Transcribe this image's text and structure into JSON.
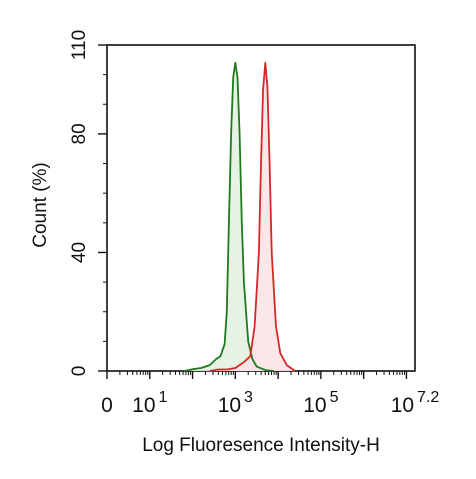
{
  "chart_data": {
    "type": "area",
    "xlabel": "Log Fluoresence Intensity-H",
    "ylabel": "Count  (%)",
    "xscale": "log",
    "xlim": [
      0,
      7.2
    ],
    "ylim": [
      0,
      110
    ],
    "grid": false,
    "legend": "none",
    "y_ticks": [
      {
        "value": 0,
        "label": "0"
      },
      {
        "value": 40,
        "label": "40"
      },
      {
        "value": 80,
        "label": "80"
      },
      {
        "value": 110,
        "label": "110"
      }
    ],
    "x_ticks": [
      {
        "value": 0,
        "base": "0",
        "exp": ""
      },
      {
        "value": 1,
        "base": "10",
        "exp": "1"
      },
      {
        "value": 3,
        "base": "10",
        "exp": "3"
      },
      {
        "value": 5,
        "base": "10",
        "exp": "5"
      },
      {
        "value": 7.2,
        "base": "10",
        "exp": "7.2"
      }
    ],
    "series": [
      {
        "line_color": "#1f7a1f",
        "fill_color": "#e3f1e0",
        "points": [
          [
            1.8,
            0
          ],
          [
            2.0,
            0.6
          ],
          [
            2.2,
            1.0
          ],
          [
            2.4,
            2.0
          ],
          [
            2.55,
            4.0
          ],
          [
            2.65,
            5.0
          ],
          [
            2.75,
            9.0
          ],
          [
            2.8,
            20.0
          ],
          [
            2.85,
            50.0
          ],
          [
            2.9,
            80.0
          ],
          [
            2.95,
            99.0
          ],
          [
            3.0,
            104.0
          ],
          [
            3.05,
            99.0
          ],
          [
            3.1,
            80.0
          ],
          [
            3.15,
            50.0
          ],
          [
            3.2,
            30.0
          ],
          [
            3.3,
            10.0
          ],
          [
            3.4,
            4.0
          ],
          [
            3.5,
            1.5
          ],
          [
            3.7,
            0.3
          ],
          [
            3.9,
            0
          ]
        ]
      },
      {
        "line_color": "#d42828",
        "fill_color": "#fbe3e5",
        "points": [
          [
            2.4,
            0
          ],
          [
            2.6,
            0.5
          ],
          [
            2.8,
            0.5
          ],
          [
            3.0,
            1.0
          ],
          [
            3.2,
            3.0
          ],
          [
            3.35,
            5.0
          ],
          [
            3.45,
            15.0
          ],
          [
            3.55,
            40.0
          ],
          [
            3.6,
            70.0
          ],
          [
            3.65,
            95.0
          ],
          [
            3.7,
            104.0
          ],
          [
            3.75,
            96.0
          ],
          [
            3.8,
            70.0
          ],
          [
            3.85,
            40.0
          ],
          [
            3.95,
            15.0
          ],
          [
            4.05,
            6.0
          ],
          [
            4.2,
            2.0
          ],
          [
            4.4,
            0
          ]
        ]
      }
    ]
  }
}
